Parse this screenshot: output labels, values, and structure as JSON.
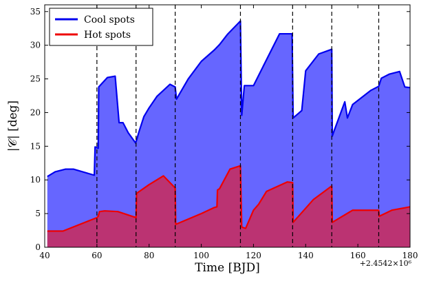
{
  "chart_data": {
    "type": "area",
    "xlabel": "Time [BJD]",
    "ylabel": "|𝒞| [deg]",
    "x_offset_label": "+2.4542×10⁶",
    "xlim": [
      40,
      180
    ],
    "ylim": [
      0,
      36
    ],
    "xticks": [
      40,
      60,
      80,
      100,
      120,
      140,
      160,
      180
    ],
    "yticks": [
      0,
      5,
      10,
      15,
      20,
      25,
      30,
      35
    ],
    "vlines": [
      60,
      75,
      90,
      115,
      135,
      150,
      168
    ],
    "legend": {
      "placement": "top-left"
    },
    "series": [
      {
        "name": "Cool spots",
        "color": "#0000ee",
        "fill": "#6666ff",
        "x": [
          41,
          44,
          48,
          51,
          59,
          59.3,
          60.5,
          60.7,
          64,
          67,
          68.5,
          70,
          72,
          74.8,
          75.2,
          76,
          78,
          80,
          83,
          88,
          90,
          90.5,
          95,
          100,
          105,
          107,
          110,
          115,
          115.5,
          116.5,
          120,
          130,
          134.8,
          135.2,
          137,
          138.5,
          140,
          145,
          150,
          150.2,
          151,
          155,
          156,
          158,
          165,
          168,
          169,
          172,
          176,
          178,
          180
        ],
        "y": [
          10.5,
          11.2,
          11.6,
          11.6,
          10.7,
          14.9,
          14.7,
          23.8,
          25.2,
          25.4,
          18.5,
          18.5,
          17.0,
          15.5,
          15.9,
          17.0,
          19.4,
          20.7,
          22.4,
          24.2,
          23.8,
          22.0,
          25.0,
          27.6,
          29.3,
          30.1,
          31.6,
          33.6,
          19.6,
          24.0,
          24.0,
          31.7,
          31.7,
          19.2,
          19.8,
          20.3,
          26.2,
          28.7,
          29.4,
          16.5,
          17.4,
          21.6,
          19.2,
          21.2,
          23.3,
          23.9,
          25.1,
          25.7,
          26.1,
          23.8,
          23.7
        ]
      },
      {
        "name": "Hot spots",
        "color": "#ee0000",
        "fill": "#c0306a",
        "x": [
          41,
          47,
          60,
          60.5,
          61,
          63,
          68,
          75,
          75.2,
          80,
          85.5,
          90,
          90.2,
          100,
          105,
          106,
          106.2,
          107,
          111,
          115,
          115.5,
          117,
          120,
          122,
          125,
          133,
          135,
          135.2,
          143,
          150,
          150.2,
          158,
          168,
          168.2,
          173,
          180
        ],
        "y": [
          2.4,
          2.4,
          4.4,
          4.6,
          5.3,
          5.4,
          5.3,
          4.4,
          8.0,
          9.3,
          10.6,
          8.8,
          3.4,
          5.0,
          5.9,
          6.0,
          8.5,
          8.7,
          11.6,
          12.1,
          3.0,
          2.8,
          5.5,
          6.4,
          8.3,
          9.7,
          9.6,
          3.7,
          7.1,
          9.1,
          3.7,
          5.5,
          5.5,
          4.6,
          5.5,
          6.0
        ]
      }
    ]
  }
}
